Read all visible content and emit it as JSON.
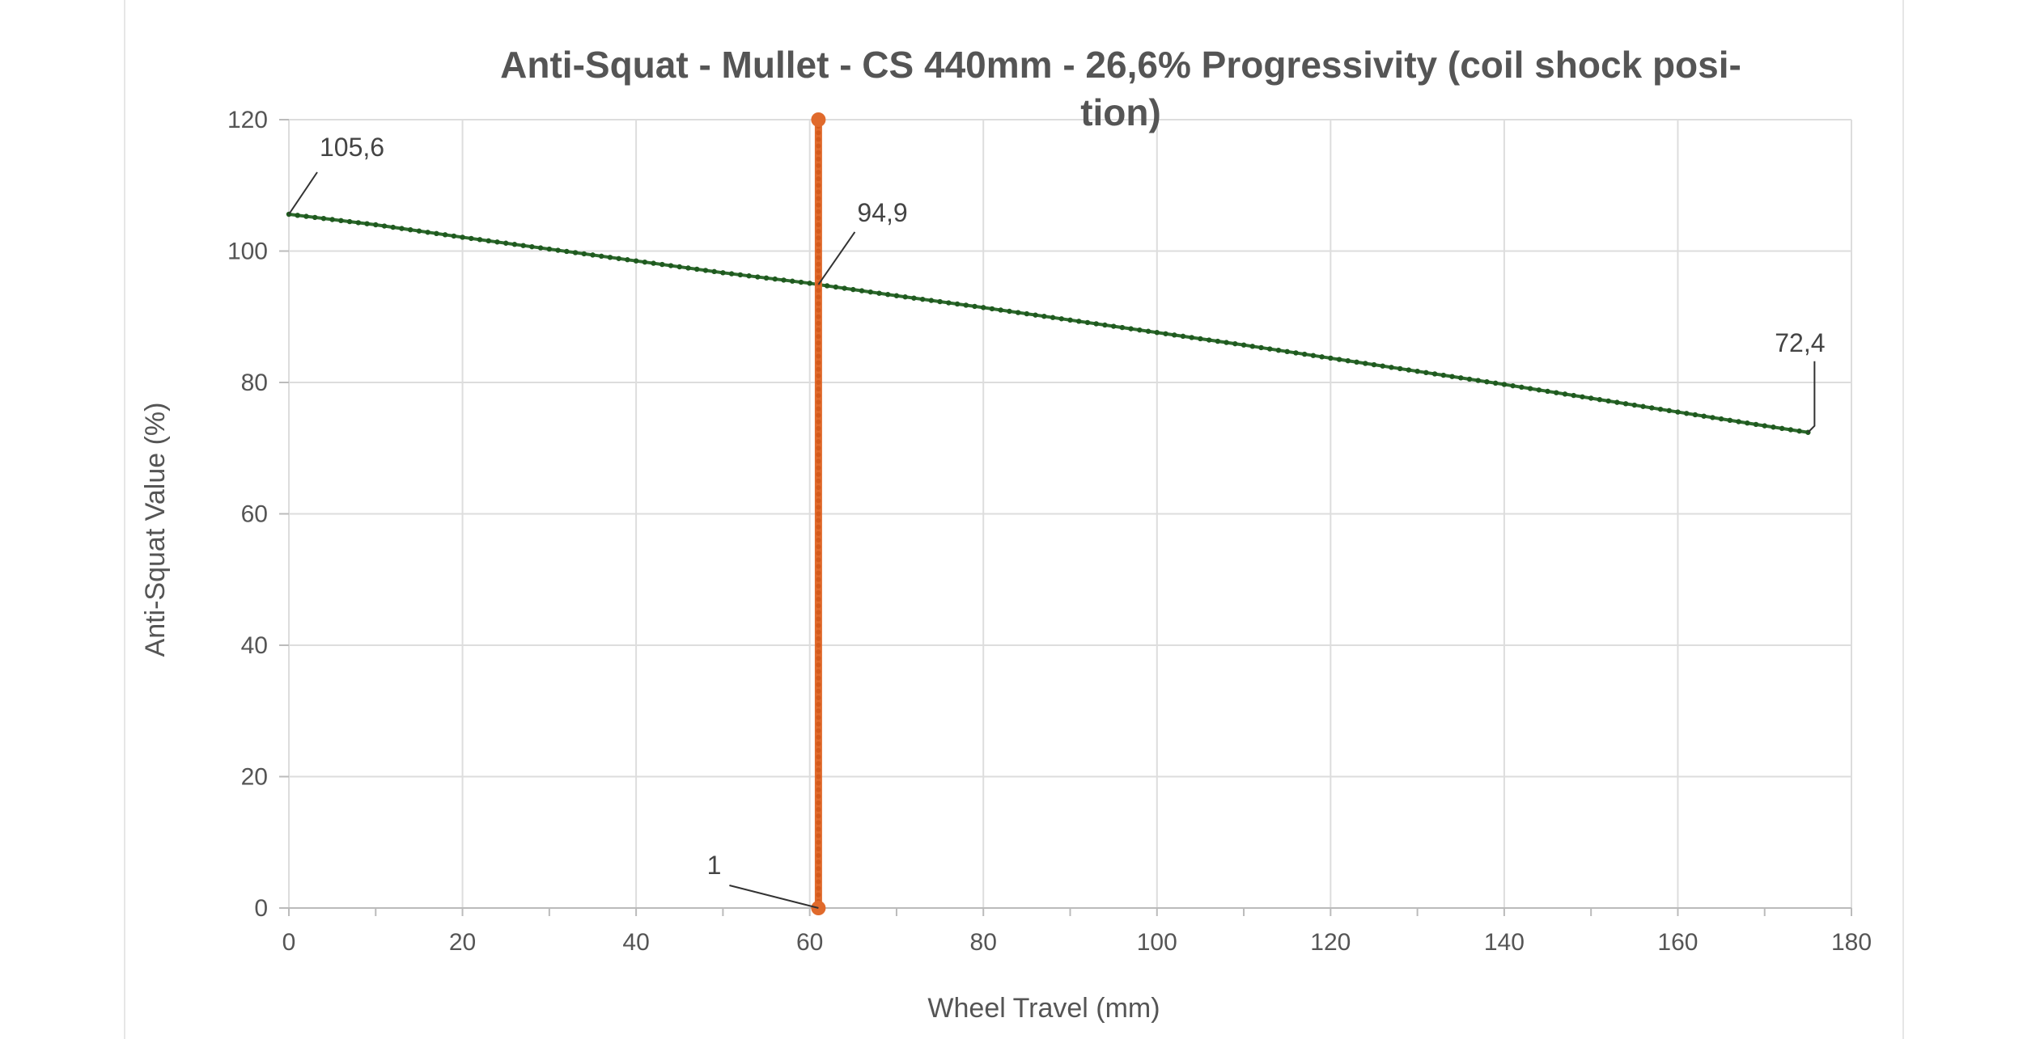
{
  "chart_data": {
    "type": "line",
    "title": "Anti-Squat - Mullet - CS 440mm - 26,6% Progressivity (coil shock posi-tion)",
    "title_lines": [
      "Anti-Squat - Mullet - CS 440mm - 26,6% Progressivity (coil shock posi-",
      "tion)"
    ],
    "xlabel": "Wheel Travel (mm)",
    "ylabel": "Anti-Squat Value (%)",
    "xlim": [
      0,
      180
    ],
    "ylim": [
      0,
      120
    ],
    "x_ticks": [
      "0",
      "20",
      "40",
      "60",
      "80",
      "100",
      "120",
      "140",
      "160",
      "180"
    ],
    "y_ticks": [
      "0",
      "20",
      "40",
      "60",
      "80",
      "100",
      "120"
    ],
    "grid": true,
    "series": [
      {
        "color": "#2e6b2e",
        "marker_step": 1,
        "x": [
          0,
          10,
          20,
          30,
          40,
          50,
          60,
          61,
          70,
          80,
          90,
          100,
          110,
          120,
          130,
          140,
          150,
          160,
          170,
          175
        ],
        "y": [
          105.6,
          104.0,
          102.1,
          100.3,
          98.5,
          96.7,
          95.1,
          94.9,
          93.2,
          91.4,
          89.5,
          87.6,
          85.7,
          83.7,
          81.7,
          79.7,
          77.6,
          75.5,
          73.4,
          72.4
        ]
      },
      {
        "color": "#e06a2c",
        "x": [
          61,
          61
        ],
        "y": [
          0,
          120
        ]
      }
    ],
    "annotations": [
      {
        "text": "105,6",
        "x": 0,
        "y": 105.6
      },
      {
        "text": "94,9",
        "x": 61,
        "y": 94.9
      },
      {
        "text": "72,4",
        "x": 175,
        "y": 72.4
      },
      {
        "text": "1",
        "x": 61,
        "y": 0
      }
    ]
  }
}
